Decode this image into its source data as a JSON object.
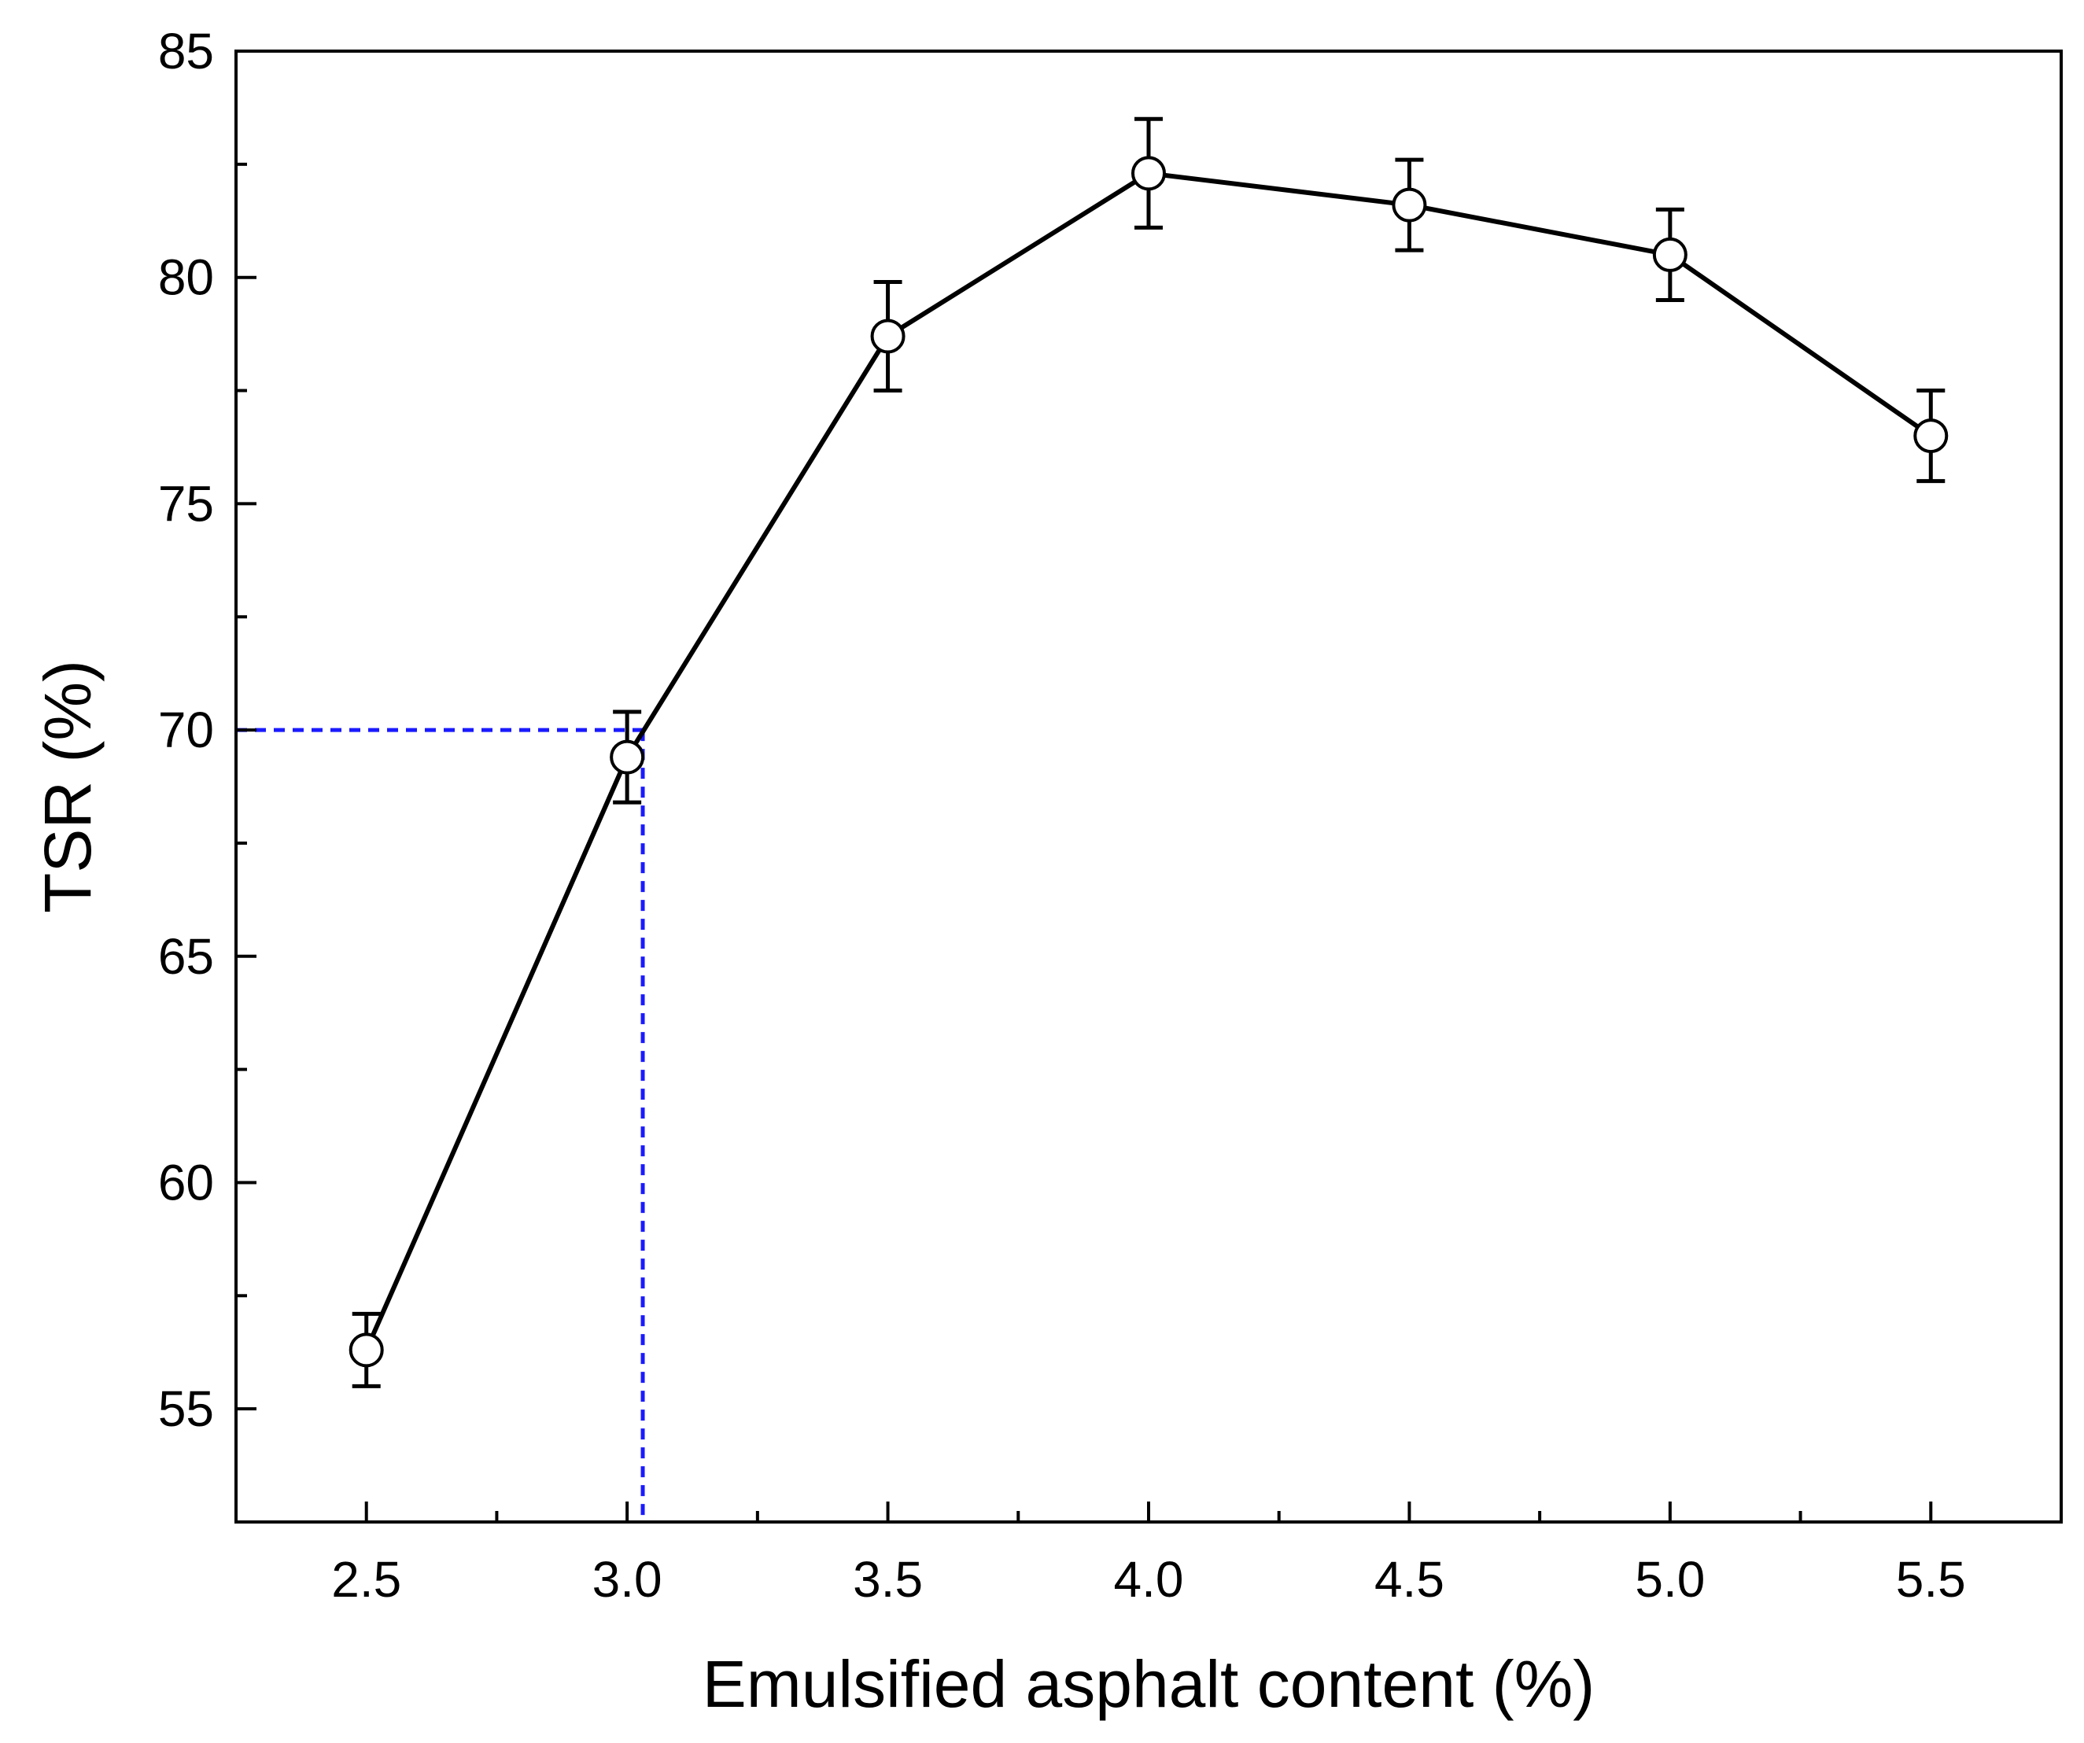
{
  "chart_data": {
    "type": "line",
    "title": "",
    "xlabel": "Emulsified asphalt content (%)",
    "ylabel": "TSR (%)",
    "xlim": [
      2.25,
      5.75
    ],
    "ylim": [
      52.5,
      85
    ],
    "xticks": [
      2.5,
      3.0,
      3.5,
      4.0,
      4.5,
      5.0,
      5.5
    ],
    "xtick_labels": [
      "2.5",
      "3.0",
      "3.5",
      "4.0",
      "4.5",
      "5.0",
      "5.5"
    ],
    "yticks": [
      55,
      60,
      65,
      70,
      75,
      80,
      85
    ],
    "ytick_labels": [
      "55",
      "60",
      "65",
      "70",
      "75",
      "80",
      "85"
    ],
    "grid": false,
    "legend": "none",
    "series": [
      {
        "x": [
          2.5,
          3.0,
          3.5,
          4.0,
          4.5,
          5.0,
          5.5
        ],
        "y": [
          56.3,
          69.4,
          78.7,
          82.3,
          81.6,
          80.5,
          76.5
        ],
        "error": [
          0.8,
          1.0,
          1.2,
          1.2,
          1.0,
          1.0,
          1.0
        ],
        "color": "#000000",
        "marker": "open-circle"
      }
    ],
    "reference_lines": {
      "y": 70,
      "x": 3.03,
      "color": "#1a1aff",
      "style": "dashed"
    }
  }
}
